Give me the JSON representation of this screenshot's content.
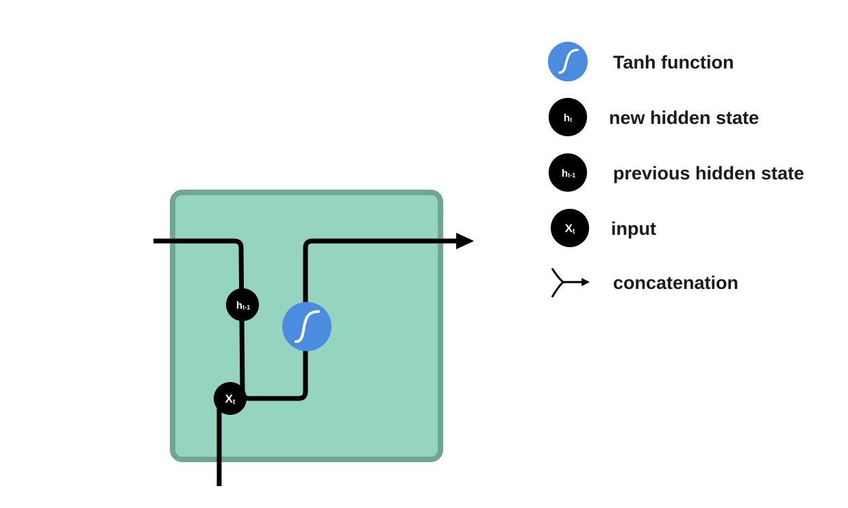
{
  "colors": {
    "cell_fill": "#95d5bf",
    "cell_border": "#6ea791",
    "tanh_blue": "#4a8de0",
    "node_black": "#000000",
    "line_black": "#000000"
  },
  "cell": {
    "nodes": {
      "prev_hidden": {
        "main": "h",
        "sub": "t-1"
      },
      "input": {
        "main": "X",
        "sub": "t"
      },
      "tanh": {
        "icon": "tanh-curve-icon"
      }
    }
  },
  "legend": [
    {
      "icon": "tanh-curve-icon",
      "main": "",
      "sub": "",
      "label": "Tanh function"
    },
    {
      "icon": "node-circle-icon",
      "main": "h",
      "sub": "t",
      "label": "new hidden state"
    },
    {
      "icon": "node-circle-icon",
      "main": "h",
      "sub": "t-1",
      "label": "previous hidden state"
    },
    {
      "icon": "node-circle-icon",
      "main": "X",
      "sub": "t",
      "label": "input"
    },
    {
      "icon": "concatenation-arrow-icon",
      "main": "",
      "sub": "",
      "label": "concatenation"
    }
  ]
}
